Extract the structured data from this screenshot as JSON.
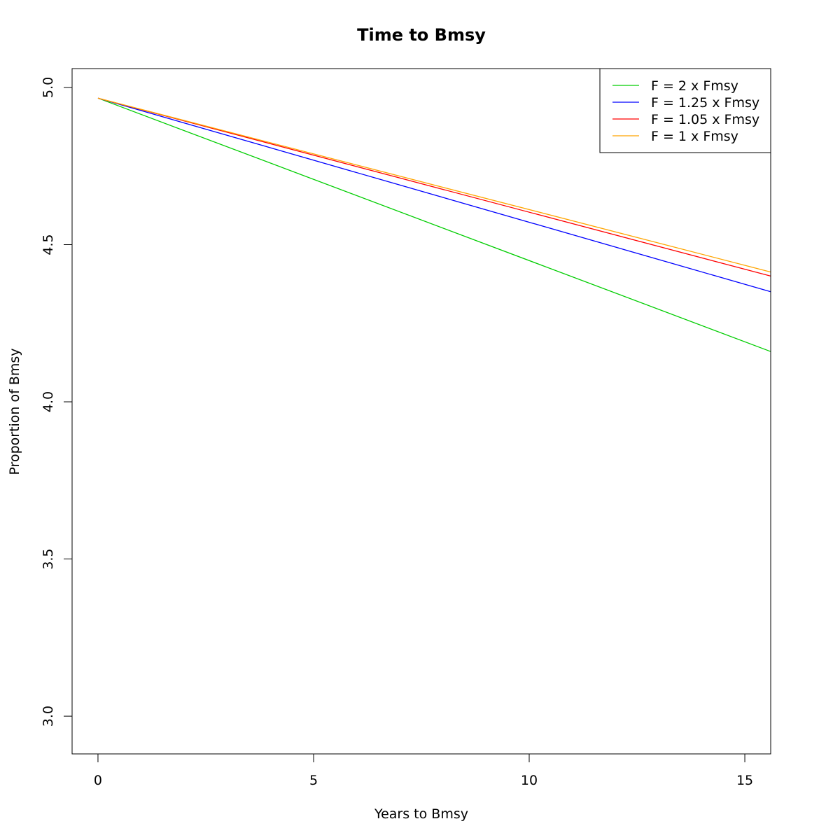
{
  "chart_data": {
    "type": "line",
    "title": "Time to Bmsy",
    "xlabel": "Years to Bmsy",
    "ylabel": "Proportion of Bmsy",
    "xlim": [
      -0.6,
      15.6
    ],
    "ylim": [
      2.88,
      5.06
    ],
    "xticks": [
      0,
      5,
      10,
      15
    ],
    "xtick_labels": [
      "0",
      "5",
      "10",
      "15"
    ],
    "yticks": [
      3.0,
      3.5,
      4.0,
      4.5,
      5.0
    ],
    "ytick_labels": [
      "3.0",
      "3.5",
      "4.0",
      "4.5",
      "5.0"
    ],
    "grid": false,
    "legend_position": "top-right",
    "series": [
      {
        "name": "F = 2 x Fmsy",
        "color": "#00cd00",
        "x": [
          0,
          15.6
        ],
        "y": [
          4.966,
          4.16
        ]
      },
      {
        "name": "F = 1.25 x Fmsy",
        "color": "#0000ff",
        "x": [
          0,
          15.6
        ],
        "y": [
          4.966,
          4.35
        ]
      },
      {
        "name": "F = 1.05 x Fmsy",
        "color": "#ff0000",
        "x": [
          0,
          15.6
        ],
        "y": [
          4.966,
          4.4
        ]
      },
      {
        "name": "F = 1 x Fmsy",
        "color": "#ffa500",
        "x": [
          0,
          15.6
        ],
        "y": [
          4.966,
          4.413
        ]
      }
    ]
  }
}
